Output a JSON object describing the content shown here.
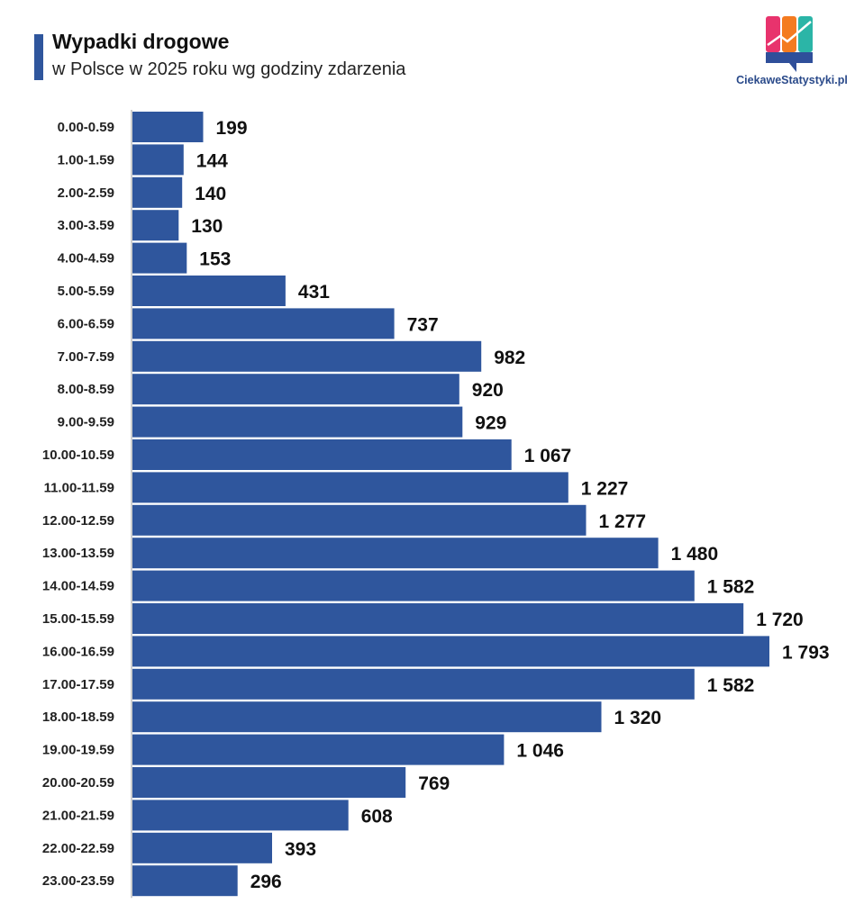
{
  "header": {
    "title": "Wypadki drogowe",
    "subtitle": "w Polsce w 2025 roku wg godziny zdarzenia"
  },
  "brand": {
    "name": "CiekaweStatystyki.pl",
    "logo_colors": [
      "#e8336d",
      "#f47b20",
      "#2bb5a7",
      "#2f4f9a"
    ]
  },
  "colors": {
    "bar": "#2f569d",
    "title_accent": "#2f569d"
  },
  "chart_data": {
    "type": "bar",
    "orientation": "horizontal",
    "title": "Wypadki drogowe",
    "subtitle": "w Polsce w 2025 roku wg godziny zdarzenia",
    "xlabel": "",
    "ylabel": "",
    "xlim": [
      0,
      1793
    ],
    "grid": false,
    "legend": "none",
    "categories": [
      "0.00-0.59",
      "1.00-1.59",
      "2.00-2.59",
      "3.00-3.59",
      "4.00-4.59",
      "5.00-5.59",
      "6.00-6.59",
      "7.00-7.59",
      "8.00-8.59",
      "9.00-9.59",
      "10.00-10.59",
      "11.00-11.59",
      "12.00-12.59",
      "13.00-13.59",
      "14.00-14.59",
      "15.00-15.59",
      "16.00-16.59",
      "17.00-17.59",
      "18.00-18.59",
      "19.00-19.59",
      "20.00-20.59",
      "21.00-21.59",
      "22.00-22.59",
      "23.00-23.59"
    ],
    "values": [
      199,
      144,
      140,
      130,
      153,
      431,
      737,
      982,
      920,
      929,
      1067,
      1227,
      1277,
      1480,
      1582,
      1720,
      1793,
      1582,
      1320,
      1046,
      769,
      608,
      393,
      296
    ],
    "value_labels": [
      "199",
      "144",
      "140",
      "130",
      "153",
      "431",
      "737",
      "982",
      "920",
      "929",
      "1 067",
      "1 227",
      "1 277",
      "1 480",
      "1 582",
      "1 720",
      "1 793",
      "1 582",
      "1 320",
      "1 046",
      "769",
      "608",
      "393",
      "296"
    ]
  }
}
